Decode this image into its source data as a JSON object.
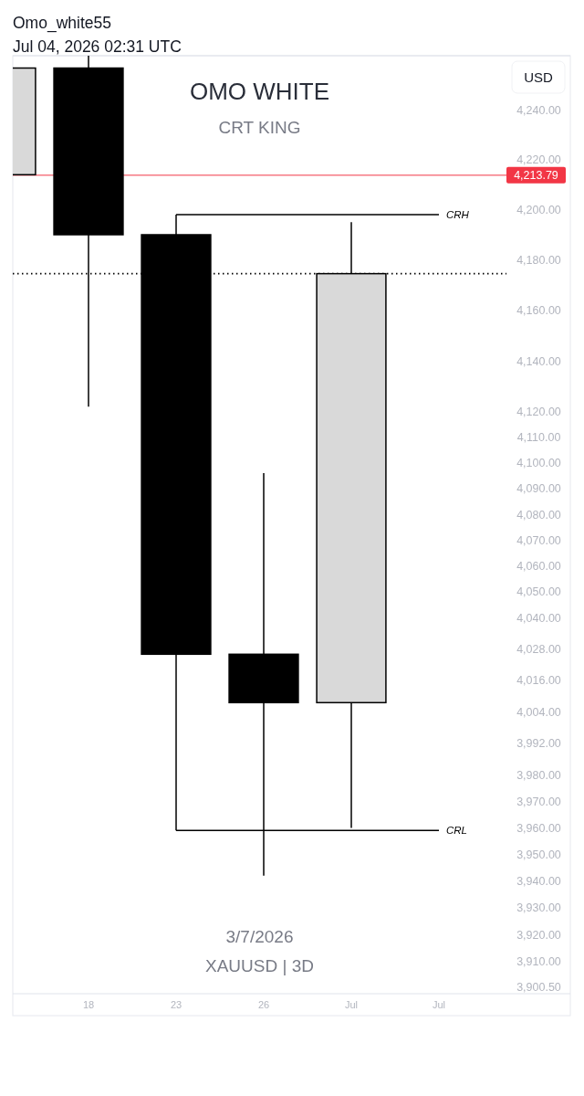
{
  "chart_data": {
    "type": "candlestick",
    "title": "OMO WHITE",
    "subtitle": "CRT KING",
    "ylabel": "USD",
    "annotations": [
      "Omo_white55",
      "Jul 04, 2026 02:31 UTC",
      "3/7/2026",
      "XAUUSD | 3D"
    ],
    "categories": [
      null,
      "18",
      "23",
      "26",
      "Jul",
      "Jul"
    ],
    "ohlc": [
      [
        4214,
        4257,
        4214,
        4257
      ],
      [
        4257,
        4262,
        4122,
        4190
      ],
      [
        4190,
        4198,
        3959,
        4026
      ],
      [
        4026,
        4096,
        3942,
        4007.5
      ],
      [
        4007.5,
        4195,
        3960,
        4174.5
      ],
      null
    ],
    "colors": [
      "#d9d9d9",
      "#000000",
      "#000000",
      "#000000",
      "#d9d9d9",
      null
    ],
    "series": [
      {
        "type": "line",
        "name": "CRH",
        "color": "#000000",
        "values": [
          null,
          null,
          4198,
          4198,
          4198,
          4198
        ]
      },
      {
        "type": "line",
        "name": "CRL",
        "color": "#000000",
        "values": [
          null,
          null,
          3959,
          3959,
          3959,
          3959
        ]
      }
    ],
    "log": true,
    "ylim": [
      3898,
      4262
    ],
    "yticks": [
      {
        "value": 4240,
        "label": "4,240.00"
      },
      {
        "value": 4220,
        "label": "4,220.00"
      },
      {
        "value": 4200,
        "label": "4,200.00"
      },
      {
        "value": 4180,
        "label": "4,180.00"
      },
      {
        "value": 4160,
        "label": "4,160.00"
      },
      {
        "value": 4140,
        "label": "4,140.00"
      },
      {
        "value": 4120,
        "label": "4,120.00"
      },
      {
        "value": 4110,
        "label": "4,110.00"
      },
      {
        "value": 4100,
        "label": "4,100.00"
      },
      {
        "value": 4090,
        "label": "4,090.00"
      },
      {
        "value": 4080,
        "label": "4,080.00"
      },
      {
        "value": 4070,
        "label": "4,070.00"
      },
      {
        "value": 4060,
        "label": "4,060.00"
      },
      {
        "value": 4050,
        "label": "4,050.00"
      },
      {
        "value": 4040,
        "label": "4,040.00"
      },
      {
        "value": 4028,
        "label": "4,028.00"
      },
      {
        "value": 4016,
        "label": "4,016.00"
      },
      {
        "value": 4004,
        "label": "4,004.00"
      },
      {
        "value": 3992,
        "label": "3,992.00"
      },
      {
        "value": 3980,
        "label": "3,980.00"
      },
      {
        "value": 3970,
        "label": "3,970.00"
      },
      {
        "value": 3960,
        "label": "3,960.00"
      },
      {
        "value": 3950,
        "label": "3,950.00"
      },
      {
        "value": 3940,
        "label": "3,940.00"
      },
      {
        "value": 3930,
        "label": "3,930.00"
      },
      {
        "value": 3920,
        "label": "3,920.00"
      },
      {
        "value": 3910,
        "label": "3,910.00"
      },
      {
        "value": 3900.5,
        "label": "3,900.50"
      }
    ],
    "ref_lines": [
      {
        "axis": "y",
        "value": 4213.79,
        "label": "4,213.79",
        "color": "#f23645"
      },
      {
        "axis": "y",
        "value": 4174.5,
        "color": "#000000",
        "line_style": "dotted"
      }
    ]
  }
}
